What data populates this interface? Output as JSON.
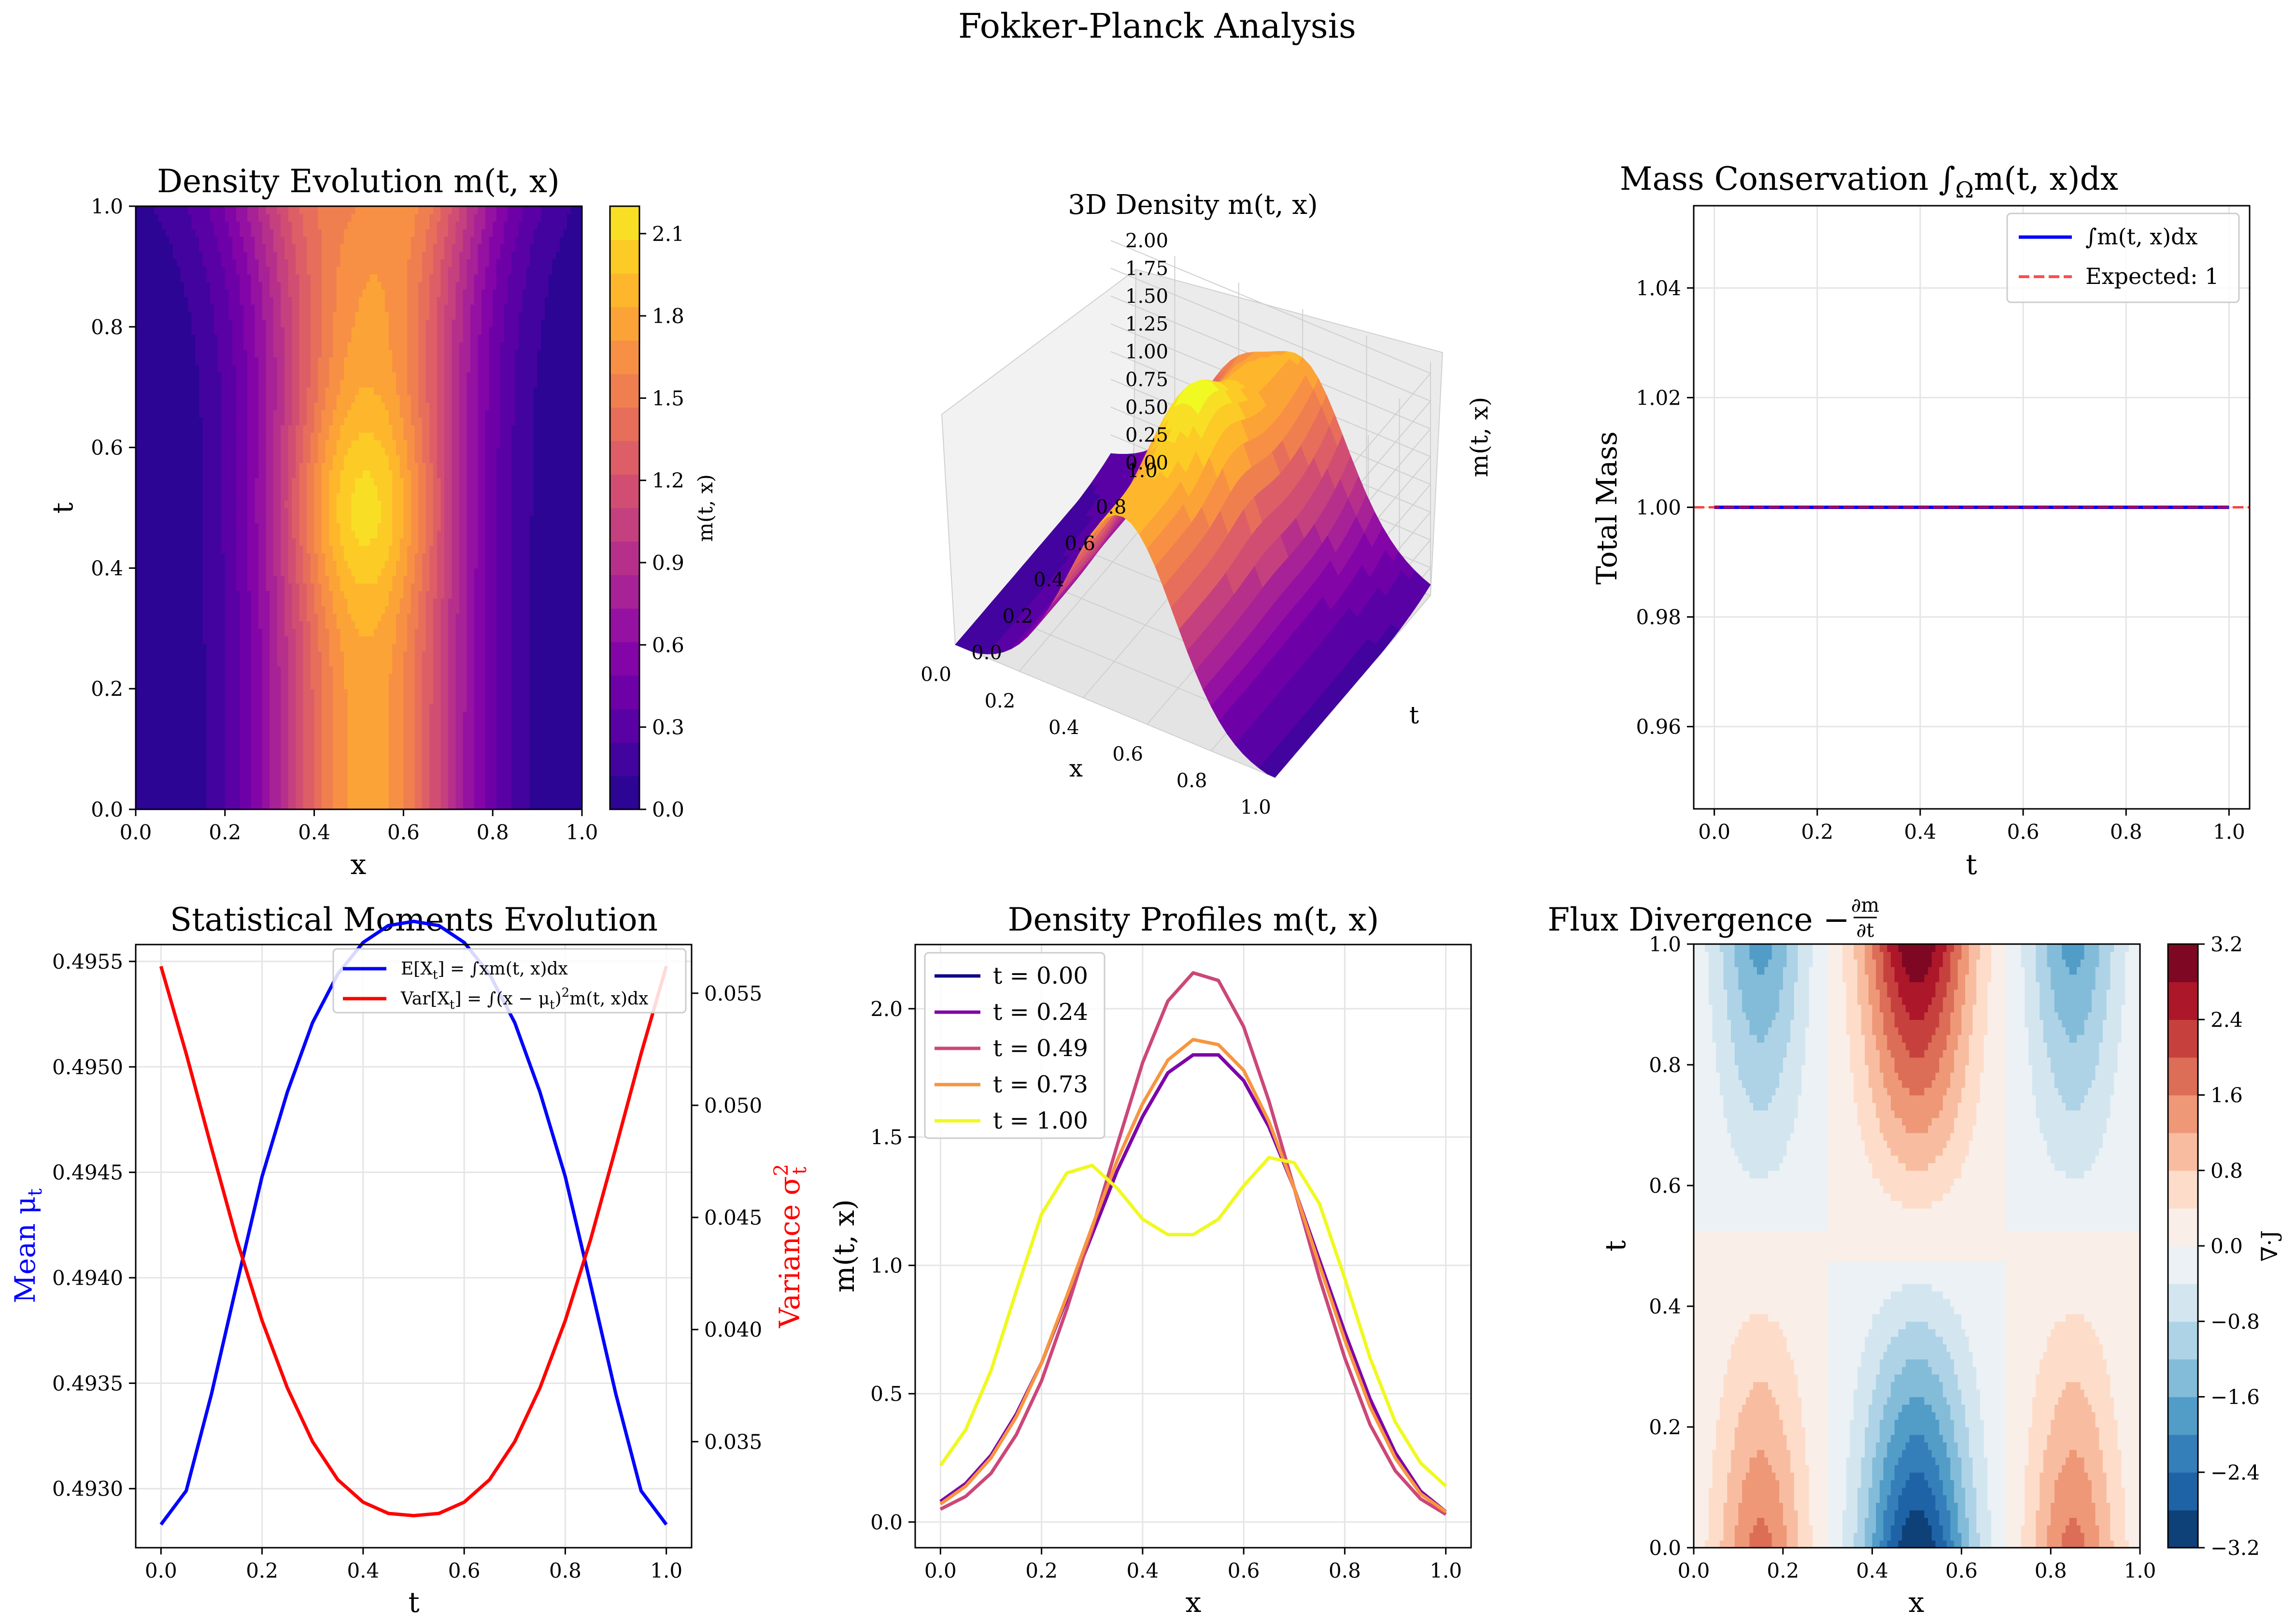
{
  "figure": {
    "title": "Fokker-Planck Analysis"
  },
  "chart_data": [
    {
      "id": "density_evolution",
      "type": "heatmap",
      "title": "Density Evolution m(t, x)",
      "xlabel": "x",
      "ylabel": "t",
      "xlim": [
        0.0,
        1.0
      ],
      "ylim": [
        0.0,
        1.0
      ],
      "x_ticks": [
        "0.0",
        "0.2",
        "0.4",
        "0.6",
        "0.8",
        "1.0"
      ],
      "y_ticks": [
        "0.0",
        "0.2",
        "0.4",
        "0.6",
        "0.8",
        "1.0"
      ],
      "colormap": "plasma",
      "colorbar": {
        "label": "m(t, x)",
        "range": [
          0.0,
          2.2
        ],
        "ticks": [
          "0.0",
          "0.3",
          "0.6",
          "0.9",
          "1.2",
          "1.5",
          "1.8",
          "2.1"
        ]
      }
    },
    {
      "id": "density_3d",
      "type": "surface",
      "title": "3D Density m(t, x)",
      "xlabel": "x",
      "ylabel": "t",
      "zlabel": "m(t, x)",
      "x_ticks": [
        "0.0",
        "0.2",
        "0.4",
        "0.6",
        "0.8",
        "1.0"
      ],
      "y_ticks": [
        "0.0",
        "0.2",
        "0.4",
        "0.6",
        "0.8",
        "1.0"
      ],
      "z_ticks": [
        "0.00",
        "0.25",
        "0.50",
        "0.75",
        "1.00",
        "1.25",
        "1.50",
        "1.75",
        "2.00"
      ],
      "zlim": [
        0.0,
        2.1
      ],
      "colormap": "plasma"
    },
    {
      "id": "mass_conservation",
      "type": "line",
      "title": "Mass Conservation ∫",
      "title_sub": "Ω",
      "title_rest": "m(t, x)dx",
      "xlabel": "t",
      "ylabel": "Total Mass",
      "xlim": [
        -0.04,
        1.04
      ],
      "ylim": [
        0.945,
        1.055
      ],
      "x_ticks": [
        "0.0",
        "0.2",
        "0.4",
        "0.6",
        "0.8",
        "1.0"
      ],
      "y_ticks": [
        "0.96",
        "0.98",
        "1.00",
        "1.02",
        "1.04"
      ],
      "grid": true,
      "legend_position": "top-right",
      "series": [
        {
          "name": "∫m(t, x)dx",
          "color": "#0000ff",
          "style": "solid",
          "x": [
            0.0,
            1.0
          ],
          "values": [
            1.0,
            1.0
          ]
        },
        {
          "name": "Expected: 1",
          "color": "#ff0000",
          "style": "dashed",
          "x": [
            -0.04,
            1.04
          ],
          "values": [
            1.0,
            1.0
          ]
        }
      ]
    },
    {
      "id": "moments",
      "type": "line",
      "title": "Statistical Moments Evolution",
      "xlabel": "t",
      "ylabel": "Mean μ",
      "ylabel_sub": "t",
      "ylabel_right": "Variance σ",
      "ylabel_right_sup": "2",
      "ylabel_right_sub": "t",
      "xlim": [
        -0.05,
        1.05
      ],
      "ylim": [
        0.49272,
        0.49558
      ],
      "ylim_right": [
        0.03027,
        0.05717
      ],
      "x_ticks": [
        "0.0",
        "0.2",
        "0.4",
        "0.6",
        "0.8",
        "1.0"
      ],
      "y_ticks": [
        "0.4930",
        "0.4935",
        "0.4940",
        "0.4945",
        "0.4950",
        "0.4955"
      ],
      "y_ticks_right": [
        "0.035",
        "0.040",
        "0.045",
        "0.050",
        "0.055"
      ],
      "grid": true,
      "legend_position": "top-right",
      "series": [
        {
          "name": "E[X",
          "name_sub": "t",
          "name_rest": "] = ∫xm(t, x)dx",
          "color": "#0000ff",
          "axis": "left",
          "x": [
            0.0,
            0.05,
            0.1,
            0.15,
            0.2,
            0.25,
            0.3,
            0.35,
            0.4,
            0.45,
            0.5,
            0.55,
            0.6,
            0.65,
            0.7,
            0.75,
            0.8,
            0.85,
            0.9,
            0.95,
            1.0
          ],
          "values": [
            0.49283,
            0.49299,
            0.49345,
            0.49397,
            0.49448,
            0.49488,
            0.49521,
            0.49544,
            0.49559,
            0.49567,
            0.49569,
            0.49567,
            0.49559,
            0.49544,
            0.49521,
            0.49488,
            0.49448,
            0.49397,
            0.49345,
            0.49299,
            0.49283
          ]
        },
        {
          "name": "Var[X",
          "name_sub": "t",
          "name_rest": "] = ∫(x − μ",
          "name_sub2": "t",
          "name_rest2": ")",
          "name_sup": "2",
          "name_rest3": "m(t, x)dx",
          "color": "#ff0000",
          "axis": "right",
          "x": [
            0.0,
            0.05,
            0.1,
            0.15,
            0.2,
            0.25,
            0.3,
            0.35,
            0.4,
            0.45,
            0.5,
            0.55,
            0.6,
            0.65,
            0.7,
            0.75,
            0.8,
            0.85,
            0.9,
            0.95,
            1.0
          ],
          "values": [
            0.0562,
            0.0523,
            0.0481,
            0.044,
            0.0404,
            0.0374,
            0.035,
            0.0333,
            0.0323,
            0.0318,
            0.0317,
            0.0318,
            0.0323,
            0.0333,
            0.035,
            0.0374,
            0.0404,
            0.044,
            0.0481,
            0.0523,
            0.0562
          ]
        }
      ]
    },
    {
      "id": "profiles",
      "type": "line",
      "title": "Density Profiles m(t, x)",
      "xlabel": "x",
      "ylabel": "m(t, x)",
      "xlim": [
        -0.05,
        1.05
      ],
      "ylim": [
        -0.1,
        2.25
      ],
      "x_ticks": [
        "0.0",
        "0.2",
        "0.4",
        "0.6",
        "0.8",
        "1.0"
      ],
      "y_ticks": [
        "0.0",
        "0.5",
        "1.0",
        "1.5",
        "2.0"
      ],
      "grid": true,
      "legend_position": "top-left",
      "x": [
        0.0,
        0.05,
        0.1,
        0.15,
        0.2,
        0.25,
        0.3,
        0.35,
        0.4,
        0.45,
        0.5,
        0.55,
        0.6,
        0.65,
        0.7,
        0.75,
        0.8,
        0.85,
        0.9,
        0.95,
        1.0
      ],
      "series": [
        {
          "name": "t = 0.00",
          "color": "#0d0887",
          "values": [
            0.08,
            0.15,
            0.26,
            0.42,
            0.62,
            0.87,
            1.12,
            1.37,
            1.58,
            1.75,
            1.82,
            1.82,
            1.72,
            1.54,
            1.3,
            1.02,
            0.74,
            0.48,
            0.27,
            0.12,
            0.04
          ]
        },
        {
          "name": "t = 0.24",
          "color": "#7e03a8",
          "values": [
            0.08,
            0.15,
            0.26,
            0.42,
            0.62,
            0.87,
            1.12,
            1.37,
            1.58,
            1.75,
            1.82,
            1.82,
            1.72,
            1.54,
            1.3,
            1.02,
            0.74,
            0.48,
            0.27,
            0.12,
            0.04
          ]
        },
        {
          "name": "t = 0.49",
          "color": "#cc4778",
          "values": [
            0.05,
            0.1,
            0.19,
            0.34,
            0.55,
            0.83,
            1.14,
            1.47,
            1.79,
            2.03,
            2.14,
            2.11,
            1.93,
            1.64,
            1.3,
            0.95,
            0.64,
            0.38,
            0.2,
            0.09,
            0.03
          ]
        },
        {
          "name": "t = 0.73",
          "color": "#f89540",
          "values": [
            0.07,
            0.14,
            0.25,
            0.41,
            0.62,
            0.88,
            1.15,
            1.41,
            1.63,
            1.8,
            1.88,
            1.86,
            1.76,
            1.56,
            1.3,
            1.0,
            0.71,
            0.45,
            0.25,
            0.11,
            0.04
          ]
        },
        {
          "name": "t = 1.00",
          "color": "#f0f921",
          "values": [
            0.22,
            0.36,
            0.59,
            0.9,
            1.2,
            1.36,
            1.39,
            1.3,
            1.18,
            1.12,
            1.12,
            1.18,
            1.31,
            1.42,
            1.4,
            1.24,
            0.95,
            0.64,
            0.39,
            0.23,
            0.14
          ]
        }
      ]
    },
    {
      "id": "flux_divergence",
      "type": "heatmap",
      "title": "Flux Divergence −",
      "title_frac_num": "∂m",
      "title_frac_den": "∂t",
      "xlabel": "x",
      "ylabel": "t",
      "xlim": [
        0.0,
        1.0
      ],
      "ylim": [
        0.0,
        1.0
      ],
      "x_ticks": [
        "0.0",
        "0.2",
        "0.4",
        "0.6",
        "0.8",
        "1.0"
      ],
      "y_ticks": [
        "0.0",
        "0.2",
        "0.4",
        "0.6",
        "0.8",
        "1.0"
      ],
      "colormap": "RdBu_r",
      "colorbar": {
        "label": "∇·J",
        "range": [
          -3.2,
          3.2
        ],
        "ticks": [
          "−3.2",
          "−2.4",
          "−1.6",
          "−0.8",
          "0.0",
          "0.8",
          "1.6",
          "2.4",
          "3.2"
        ]
      }
    }
  ]
}
